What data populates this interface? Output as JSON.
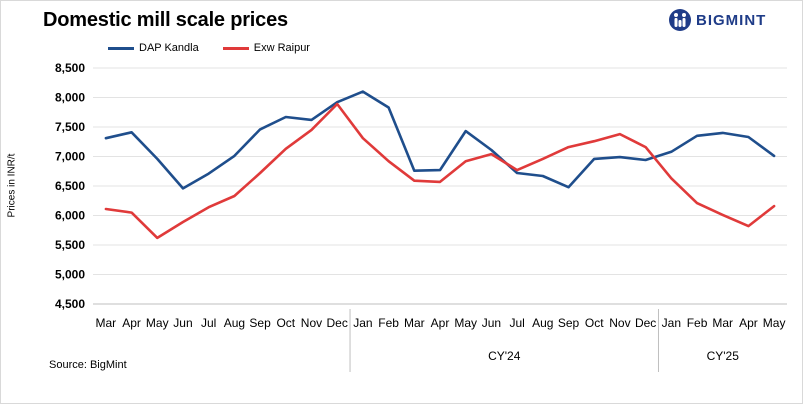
{
  "header": {
    "title": "Domestic mill scale prices",
    "brand": "BIGMINT",
    "source": "Source: BigMint"
  },
  "chart_data": {
    "type": "line",
    "title": "Domestic mill scale prices",
    "ylabel": "Prices in INR/t",
    "xlabel": "",
    "ylim": [
      4500,
      8500
    ],
    "yticks": [
      4500,
      5000,
      5500,
      6000,
      6500,
      7000,
      7500,
      8000,
      8500
    ],
    "ytick_labels": [
      "4,500",
      "5,000",
      "5,500",
      "6,000",
      "6,500",
      "7,000",
      "7,500",
      "8,000",
      "8,500"
    ],
    "grid": true,
    "legend_position": "top-left",
    "categories": [
      "Mar",
      "Apr",
      "May",
      "Jun",
      "Jul",
      "Aug",
      "Sep",
      "Oct",
      "Nov",
      "Dec",
      "Jan",
      "Feb",
      "Mar",
      "Apr",
      "May",
      "Jun",
      "Jul",
      "Aug",
      "Sep",
      "Oct",
      "Nov",
      "Dec",
      "Jan",
      "Feb",
      "Mar",
      "Apr",
      "May"
    ],
    "groups": [
      {
        "label": "",
        "start": 0,
        "end": 9
      },
      {
        "label": "CY'24",
        "start": 10,
        "end": 21
      },
      {
        "label": "CY'25",
        "start": 22,
        "end": 26
      }
    ],
    "series": [
      {
        "name": "DAP Kandla",
        "color": "#1f4e8c",
        "values": [
          7310,
          7410,
          6960,
          6460,
          6710,
          7010,
          7460,
          7670,
          7620,
          7920,
          8100,
          7830,
          6760,
          6770,
          7430,
          7110,
          6720,
          6670,
          6480,
          6960,
          6990,
          6940,
          7080,
          7350,
          7400,
          7330,
          7010
        ]
      },
      {
        "name": "Exw Raipur",
        "color": "#e03a3a",
        "values": [
          6110,
          6050,
          5620,
          5890,
          6140,
          6330,
          6720,
          7130,
          7450,
          7890,
          7310,
          6920,
          6590,
          6570,
          6920,
          7040,
          6770,
          6960,
          7160,
          7260,
          7380,
          7160,
          6630,
          6210,
          6010,
          5820,
          6160
        ]
      }
    ]
  }
}
